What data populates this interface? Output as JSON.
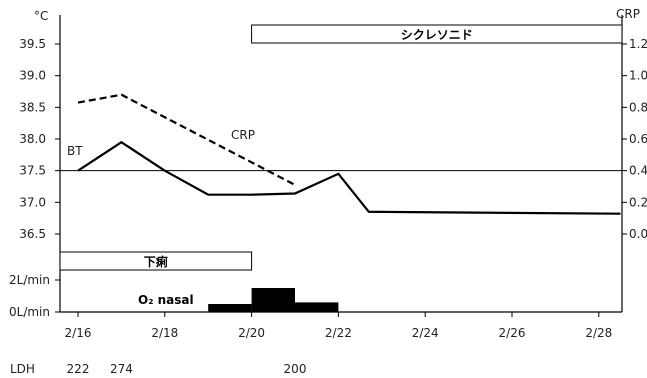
{
  "chart_data": {
    "type": "line",
    "left_axis": {
      "unit_label": "°C",
      "ticks": [
        "39.5",
        "39.0",
        "38.5",
        "38.0",
        "37.5",
        "37.0",
        "36.5"
      ],
      "range": [
        36.5,
        39.5
      ]
    },
    "right_axis": {
      "unit_label": "CRP",
      "ticks": [
        "1.2",
        "1.0",
        "0.8",
        "0.6",
        "0.4",
        "0.2",
        "0.0"
      ],
      "range": [
        0.0,
        1.2
      ]
    },
    "o2_axis": {
      "ticks": [
        "2L/min",
        "0L/min"
      ],
      "range": [
        0,
        2
      ]
    },
    "x_ticks": [
      "2/16",
      "2/18",
      "2/20",
      "2/22",
      "2/24",
      "2/26",
      "2/28"
    ],
    "series": [
      {
        "name": "BT",
        "axis": "left",
        "style": "solid",
        "points": [
          [
            "2/16",
            37.5
          ],
          [
            "2/17",
            37.95
          ],
          [
            "2/18",
            37.5
          ],
          [
            "2/19",
            37.12
          ],
          [
            "2/20",
            37.12
          ],
          [
            "2/21",
            37.14
          ],
          [
            "2/22",
            37.45
          ],
          [
            "2/22.7",
            36.85
          ],
          [
            "2/28.5",
            36.82
          ]
        ]
      },
      {
        "name": "CRP",
        "axis": "right",
        "style": "dashed",
        "points": [
          [
            "2/16",
            0.83
          ],
          [
            "2/17",
            0.88
          ],
          [
            "2/21",
            0.31
          ]
        ]
      }
    ],
    "reference_line": {
      "axis": "left",
      "value": 37.5
    },
    "o2_nasal": {
      "label": "O₂ nasal",
      "steps": [
        {
          "from": "2/19",
          "to": "2/20",
          "value": 0.5
        },
        {
          "from": "2/20",
          "to": "2/21",
          "value": 1.5
        },
        {
          "from": "2/21",
          "to": "2/22",
          "value": 0.6
        }
      ]
    },
    "bars": [
      {
        "label": "シクレソニド",
        "from": "2/20",
        "to": "2/28.5"
      },
      {
        "label": "下痢",
        "from": "2/16",
        "to": "2/20"
      }
    ],
    "lab": {
      "name": "LDH",
      "values": [
        {
          "x": "2/16",
          "value": "222"
        },
        {
          "x": "2/17",
          "value": "274"
        },
        {
          "x": "2/21",
          "value": "200"
        }
      ]
    }
  }
}
